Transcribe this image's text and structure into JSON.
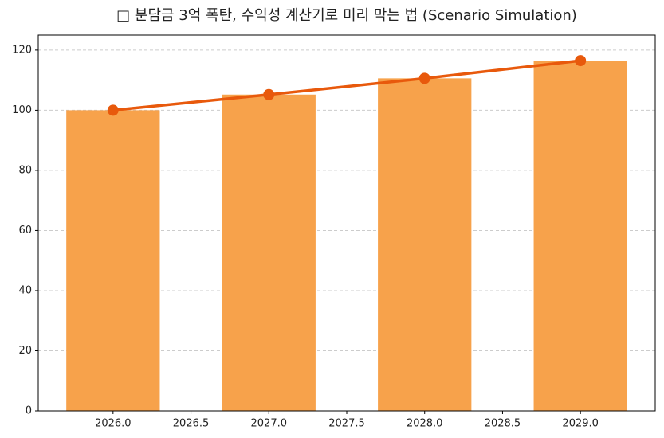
{
  "chart_data": {
    "type": "bar_line",
    "title": "□ 분담금 3억 폭탄, 수익성 계산기로 미리 막는 법 (Scenario Simulation)",
    "x": [
      2026,
      2027,
      2028,
      2029
    ],
    "bar_width": 0.6,
    "series": [
      {
        "type": "bar",
        "color": "#f7a24b",
        "values": [
          100,
          105.2,
          110.6,
          116.5
        ]
      },
      {
        "type": "line",
        "color": "#e8590c",
        "values": [
          100,
          105.2,
          110.6,
          116.5
        ]
      }
    ],
    "xlim": [
      2025.52,
      2029.48
    ],
    "xticks": [
      {
        "value": 2026,
        "label": "2026.0"
      },
      {
        "value": 2026.5,
        "label": "2026.5"
      },
      {
        "value": 2027,
        "label": "2027.0"
      },
      {
        "value": 2027.5,
        "label": "2027.5"
      },
      {
        "value": 2028,
        "label": "2028.0"
      },
      {
        "value": 2028.5,
        "label": "2028.5"
      },
      {
        "value": 2029,
        "label": "2029.0"
      }
    ],
    "ylim": [
      0,
      125
    ],
    "yticks": [
      0,
      20,
      40,
      60,
      80,
      100,
      120
    ],
    "grid": true
  }
}
